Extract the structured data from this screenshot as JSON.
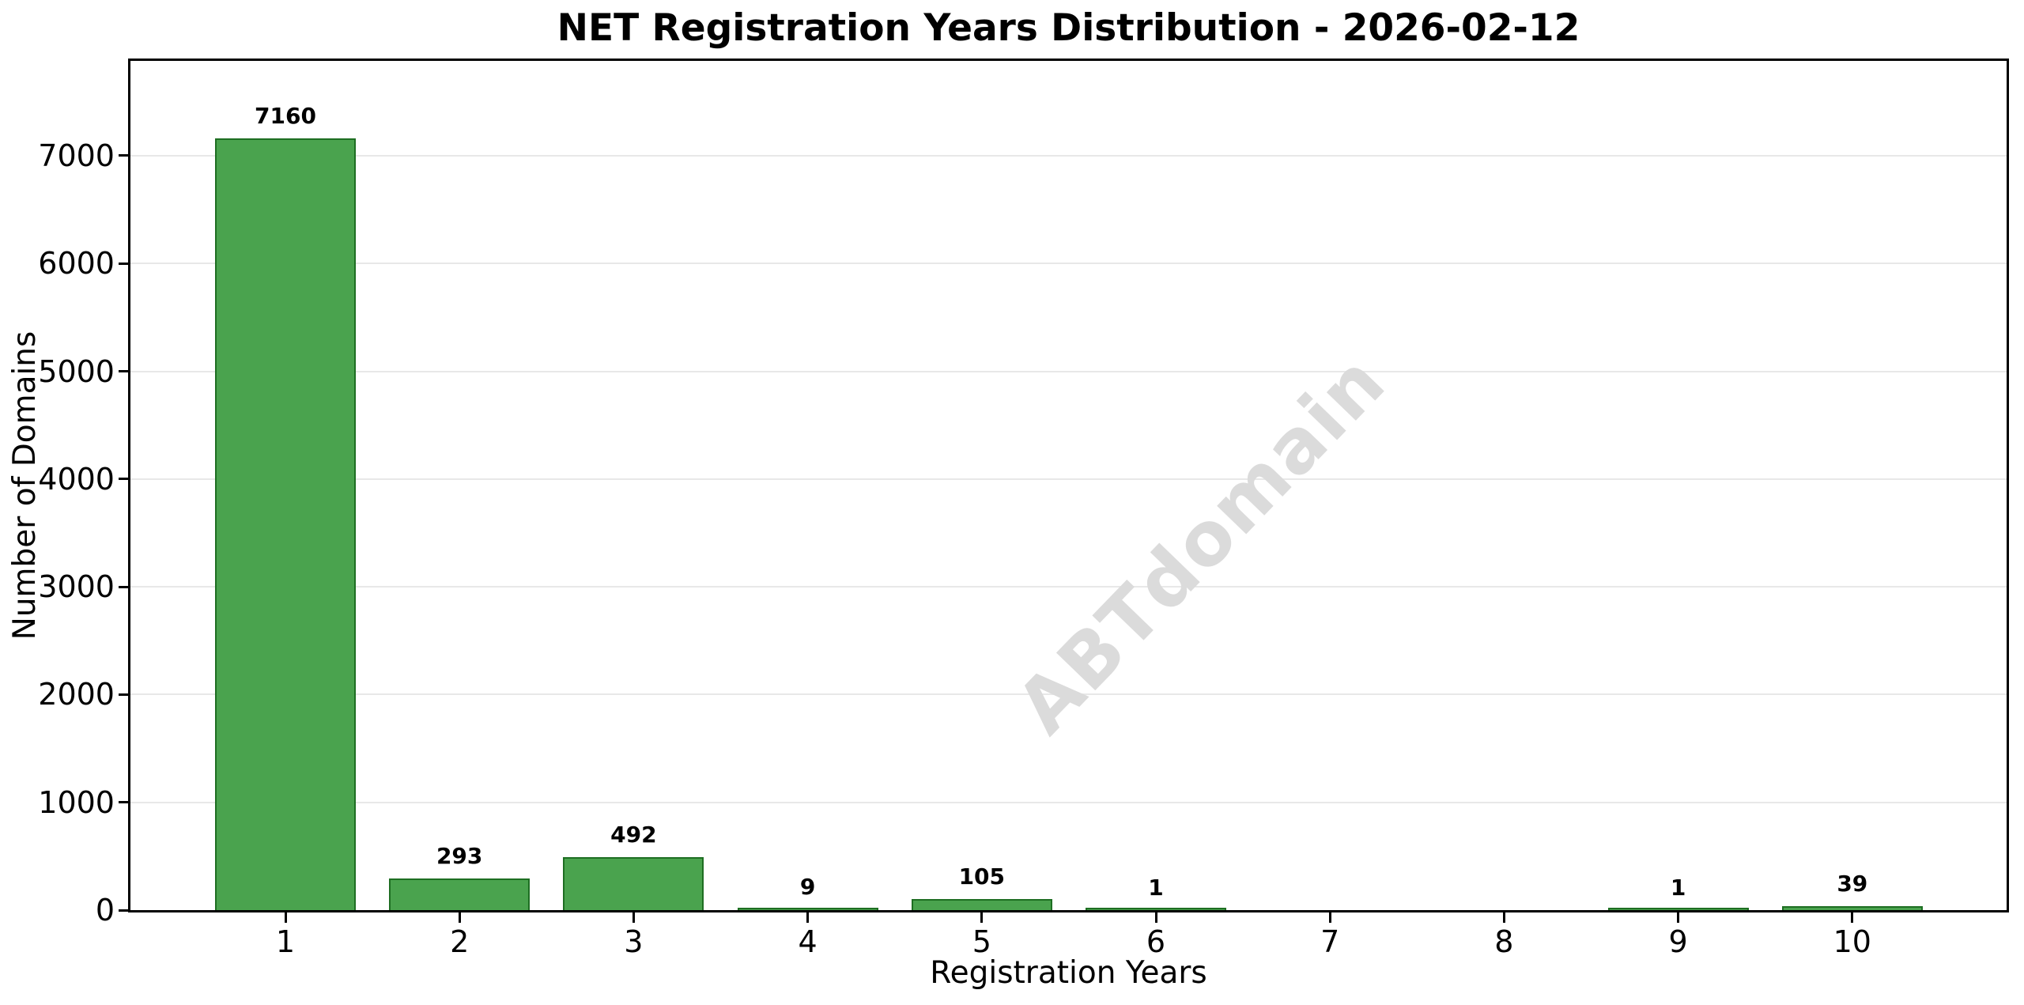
{
  "chart_data": {
    "type": "bar",
    "title": "NET Registration Years Distribution - 2026-02-12",
    "xlabel": "Registration Years",
    "ylabel": "Number of Domains",
    "categories": [
      "1",
      "2",
      "3",
      "4",
      "5",
      "6",
      "7",
      "8",
      "9",
      "10"
    ],
    "values": [
      7160,
      293,
      492,
      9,
      105,
      1,
      0,
      0,
      1,
      39
    ],
    "bar_value_labels": [
      "7160",
      "293",
      "492",
      "9",
      "105",
      "1",
      "",
      "",
      "1",
      "39"
    ],
    "yticks": [
      0,
      1000,
      2000,
      3000,
      4000,
      5000,
      6000,
      7000
    ],
    "ytick_labels": [
      "0",
      "1000",
      "2000",
      "3000",
      "4000",
      "5000",
      "6000",
      "7000"
    ],
    "ylim": [
      0,
      7880
    ],
    "grid": "horizontal",
    "legend": "none",
    "watermark": "ABTdomain",
    "colors": {
      "bar_fill": "#4AA34E",
      "bar_edge": "#1E6E22",
      "grid": "#E8E8E8",
      "axis": "#000000",
      "text": "#000000",
      "watermark_text": "#DBDBDB",
      "background": "#FFFFFF"
    }
  }
}
